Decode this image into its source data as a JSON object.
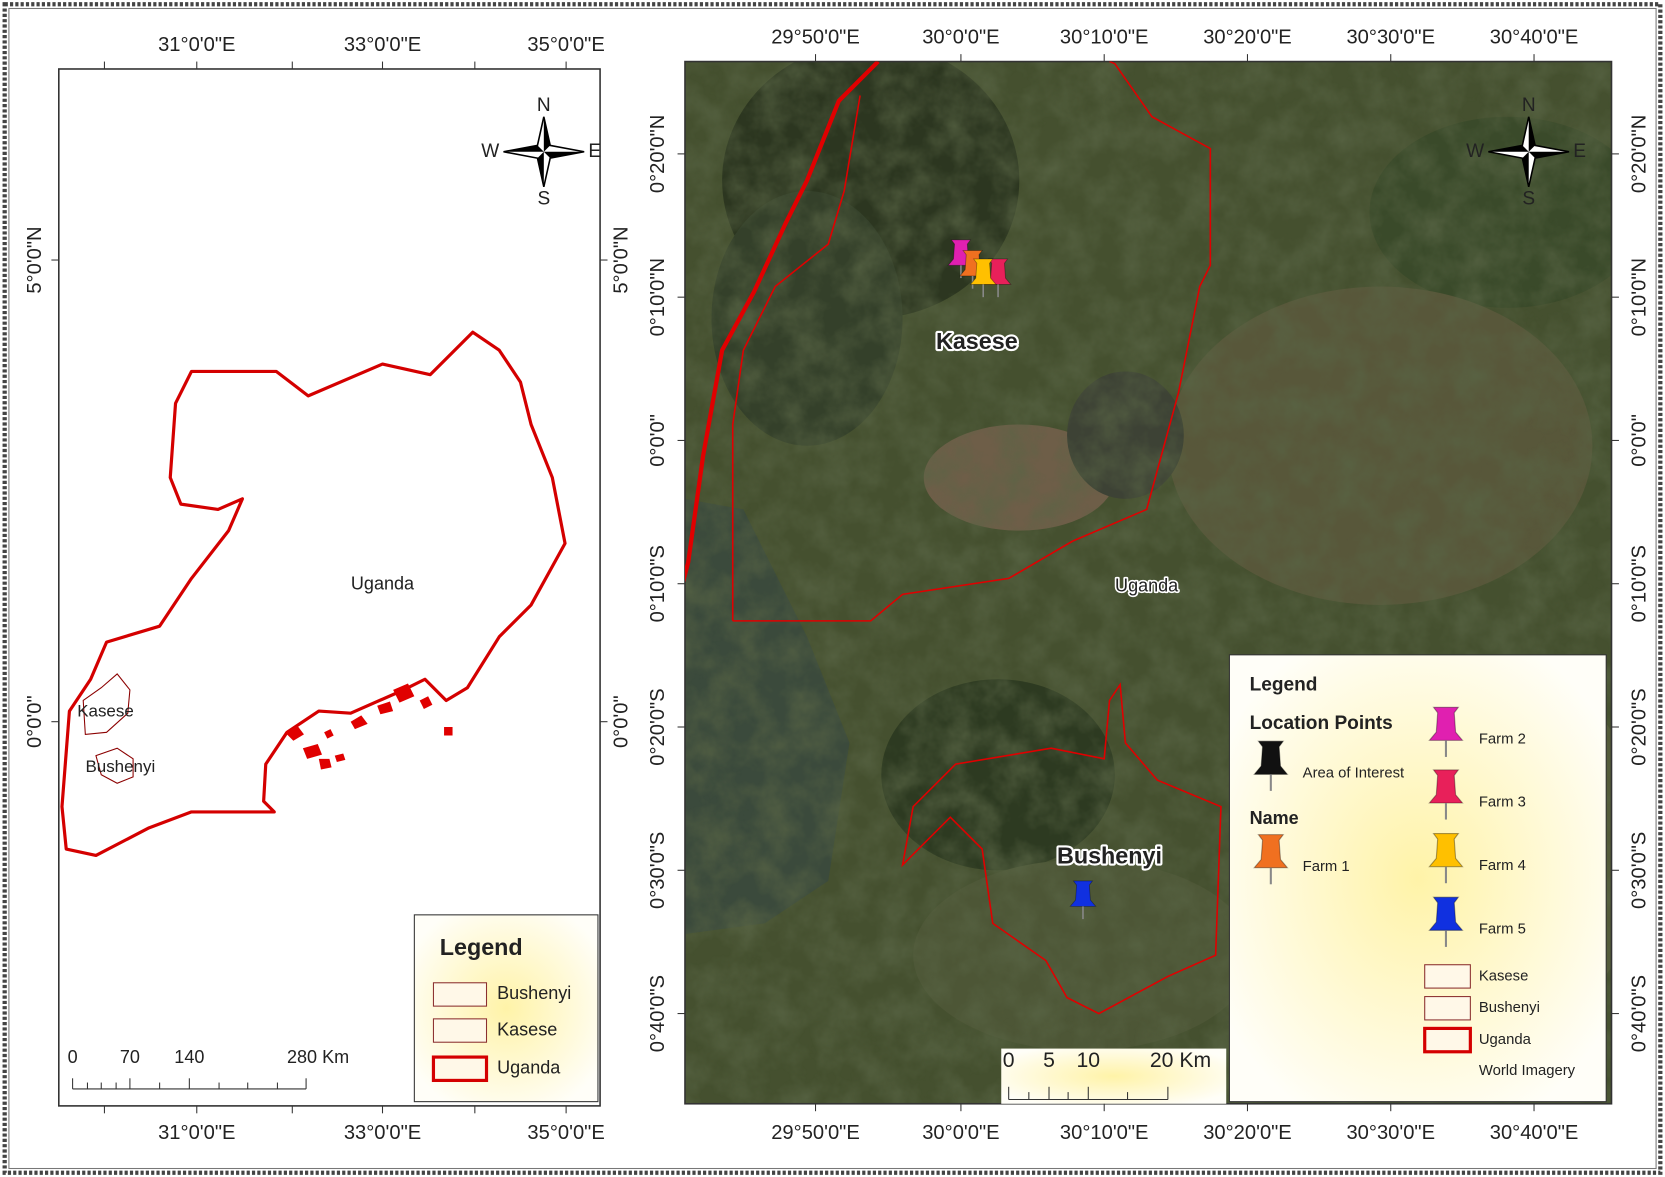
{
  "left_map": {
    "x_labels": [
      "31°0'0\"E",
      "33°0'0\"E",
      "35°0'0\"E"
    ],
    "y_labels": [
      "5°0'0\"N",
      "0°0'0\""
    ],
    "compass": {
      "n": "N",
      "s": "S",
      "e": "E",
      "w": "W"
    },
    "place_labels": [
      "Uganda",
      "Kasese",
      "Bushenyi"
    ],
    "scale_labels": [
      "0",
      "70",
      "140",
      "280 Km"
    ],
    "legend": {
      "title": "Legend",
      "items": [
        "Bushenyi",
        "Kasese",
        "Uganda"
      ]
    }
  },
  "right_map": {
    "x_labels": [
      "29°50'0\"E",
      "30°0'0\"E",
      "30°10'0\"E",
      "30°20'0\"E",
      "30°30'0\"E",
      "30°40'0\"E"
    ],
    "y_labels": [
      "0°20'0\"N",
      "0°10'0\"N",
      "0°0'0\"",
      "0°10'0\"S",
      "0°20'0\"S",
      "0°30'0\"S",
      "0°40'0\"S"
    ],
    "compass": {
      "n": "N",
      "s": "S",
      "e": "E",
      "w": "W"
    },
    "place_labels": [
      "Kasese",
      "Uganda",
      "Bushenyi"
    ],
    "scale_labels": [
      "0",
      "5",
      "10",
      "20 Km"
    ],
    "legend": {
      "title": "Legend",
      "location_heading": "Location Points",
      "area_of_interest": "Area of Interest",
      "name_heading": "Name",
      "farms": [
        "Farm 1",
        "Farm 2",
        "Farm 3",
        "Farm 4",
        "Farm 5"
      ],
      "layers": [
        "Kasese",
        "Bushenyi",
        "Uganda",
        "World Imagery"
      ]
    }
  }
}
